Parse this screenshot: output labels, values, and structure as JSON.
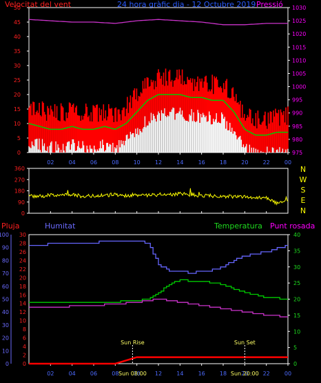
{
  "colors": {
    "background": "#000000",
    "frame": "#ffffff",
    "wind": "#ff0000",
    "gust_fill": "#ffffff",
    "avg_wind": "#00cc00",
    "pressure": "#cc33cc",
    "direction": "#ffff00",
    "humidity": "#6666ff",
    "temperature": "#00cc00",
    "dewpoint": "#cc33cc",
    "rain": "#ff0000",
    "tick_red": "#ff2020",
    "tick_magenta": "#ff00ff",
    "tick_blue": "#6b6bff",
    "tick_green": "#1fdc1f",
    "dir_letters": "#ffff00"
  },
  "header": {
    "wind_label": "Velocitat del vent",
    "title": "24 hora gràfic dia - 12 Octubre 2019",
    "pressure_label": "Pressió"
  },
  "bottom_header": {
    "rain_label": "Pluja",
    "humidity_label": "Humitat",
    "temp_label": "Temperatura",
    "dew_label": "Punt rosada"
  },
  "annotations": {
    "sunrise": "Sun Rise",
    "sunset": "Sun Set",
    "sunrise_time": "Sun 08:00",
    "sunset_time": "Sun 20:00"
  },
  "chart_data": [
    {
      "type": "line",
      "panel": "wind_pressure",
      "x_ticks": [
        "02",
        "04",
        "06",
        "08",
        "10",
        "12",
        "14",
        "16",
        "18",
        "20",
        "22",
        "00"
      ],
      "y_left_ticks": [
        "0",
        "5",
        "10",
        "15",
        "20",
        "25",
        "30",
        "35",
        "40",
        "45",
        "50"
      ],
      "y_right_ticks": [
        "975",
        "980",
        "985",
        "990",
        "995",
        "1000",
        "1005",
        "1010",
        "1015",
        "1020",
        "1025",
        "1030"
      ],
      "ylim_left": [
        0,
        50
      ],
      "ylim_right": [
        975,
        1030
      ],
      "series": [
        {
          "name": "Velocitat del vent",
          "hours": [
            0,
            1,
            2,
            3,
            4,
            5,
            6,
            7,
            8,
            9,
            10,
            11,
            12,
            13,
            14,
            15,
            16,
            17,
            18,
            19,
            20,
            21,
            22,
            23,
            24
          ],
          "values": [
            10,
            9,
            8,
            8,
            9,
            8,
            8,
            9,
            8,
            10,
            14,
            18,
            20,
            20,
            20,
            19,
            19,
            18,
            18,
            14,
            8,
            6,
            6,
            7,
            7
          ]
        },
        {
          "name": "Pressió",
          "hours": [
            0,
            2,
            4,
            6,
            8,
            10,
            12,
            14,
            16,
            18,
            20,
            22,
            24
          ],
          "values": [
            1025.5,
            1025,
            1024.5,
            1024.5,
            1024,
            1025,
            1025.5,
            1025,
            1024.5,
            1023.5,
            1023.5,
            1024,
            1024
          ]
        }
      ]
    },
    {
      "type": "line",
      "panel": "wind_direction",
      "y_left_ticks": [
        "0",
        "90",
        "180",
        "270",
        "360"
      ],
      "dir_labels": [
        "N",
        "W",
        "S",
        "E",
        "N"
      ],
      "ylim": [
        0,
        360
      ],
      "hours": [
        0,
        1,
        2,
        3,
        4,
        5,
        6,
        7,
        8,
        9,
        10,
        11,
        12,
        13,
        14,
        15,
        16,
        17,
        18,
        19,
        20,
        21,
        22,
        23,
        24
      ],
      "values": [
        140,
        135,
        145,
        140,
        150,
        135,
        140,
        145,
        150,
        140,
        150,
        145,
        150,
        150,
        155,
        150,
        140,
        140,
        130,
        135,
        130,
        130,
        125,
        80,
        100
      ]
    },
    {
      "type": "line",
      "panel": "humidity_temp",
      "y_rain_ticks": [
        "0",
        "10",
        "20",
        "30",
        "40",
        "50",
        "60",
        "70",
        "80",
        "90",
        "100"
      ],
      "y_hum_ticks": [
        "0",
        "2",
        "4",
        "6",
        "8",
        "10",
        "12",
        "14",
        "16",
        "18",
        "20",
        "22",
        "24",
        "26",
        "28",
        "30"
      ],
      "y_temp_ticks": [
        "0",
        "5",
        "10",
        "15",
        "20",
        "25",
        "30",
        "35",
        "40"
      ],
      "series": [
        {
          "name": "Humitat",
          "hours": [
            0,
            2,
            4,
            6,
            8,
            10,
            11,
            12,
            13,
            14,
            15,
            16,
            17,
            18,
            19,
            20,
            22,
            24
          ],
          "values": [
            27.5,
            27.8,
            28,
            28.2,
            28.5,
            28.5,
            28,
            23,
            21.5,
            21.5,
            21,
            21.5,
            21.8,
            22.5,
            24,
            25,
            26,
            27.5
          ]
        },
        {
          "name": "Temperatura",
          "hours": [
            0,
            2,
            4,
            6,
            8,
            10,
            11,
            12,
            13,
            14,
            15,
            16,
            17,
            18,
            19,
            20,
            22,
            24
          ],
          "values": [
            19,
            19,
            19,
            19,
            19.2,
            19.5,
            20,
            22,
            24.5,
            26,
            25.5,
            25.5,
            25,
            24.5,
            23,
            22,
            20.5,
            20
          ]
        },
        {
          "name": "Punt rosada",
          "hours": [
            0,
            2,
            4,
            6,
            8,
            10,
            11,
            12,
            13,
            14,
            15,
            16,
            17,
            18,
            19,
            20,
            22,
            24
          ],
          "values": [
            17.5,
            17.5,
            17.8,
            18,
            18.5,
            19,
            19.5,
            20,
            19.5,
            19,
            18.5,
            18,
            17.5,
            17,
            16.5,
            16,
            15,
            14.5
          ]
        },
        {
          "name": "Pluja",
          "hours": [
            0,
            8,
            9,
            10,
            24
          ],
          "values": [
            0,
            0,
            1,
            2,
            2
          ]
        }
      ]
    }
  ]
}
